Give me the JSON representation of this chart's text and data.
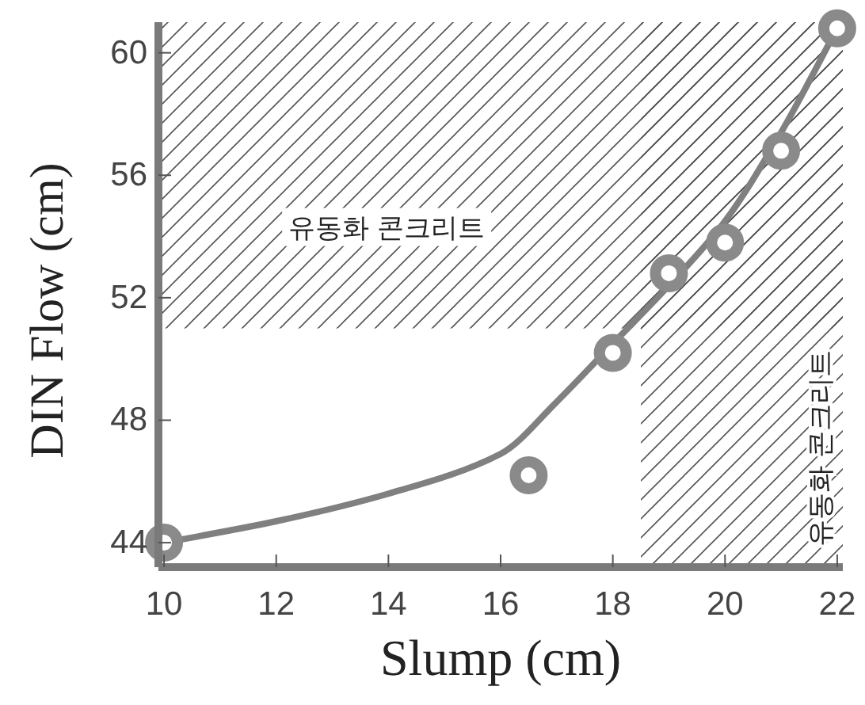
{
  "chart_data": {
    "type": "scatter",
    "xlabel": "Slump (cm)",
    "ylabel": "DIN Flow (cm)",
    "xlim": [
      9.9,
      22.1
    ],
    "ylim": [
      43.2,
      61
    ],
    "xticks": [
      10,
      12,
      14,
      16,
      18,
      20,
      22
    ],
    "yticks": [
      44,
      48,
      52,
      56,
      60
    ],
    "grid": false,
    "marker": "circle",
    "series": [
      {
        "type": "line",
        "color": "#808080",
        "line_style": "solid",
        "marker": "none",
        "x": [
          10,
          12,
          14,
          16,
          17,
          18,
          19,
          20,
          21,
          22
        ],
        "values": [
          44,
          44.7,
          45.6,
          46.9,
          48.6,
          50.5,
          52.4,
          54.5,
          57.4,
          60.8
        ]
      },
      {
        "type": "scatter",
        "color": "#8a8a8a",
        "x": [
          10,
          16.5,
          18,
          19,
          20,
          21,
          22
        ],
        "values": [
          44,
          46.2,
          50.2,
          52.8,
          53.8,
          56.8,
          60.8
        ]
      }
    ],
    "bands": [
      {
        "axis": "y",
        "from": 51,
        "to": 61,
        "label": "유동화 콘크리트",
        "color": "#555555"
      },
      {
        "axis": "x",
        "from": 18.5,
        "to": 22.1,
        "label": "유동화 콘크리트",
        "color": "#555555"
      }
    ]
  }
}
